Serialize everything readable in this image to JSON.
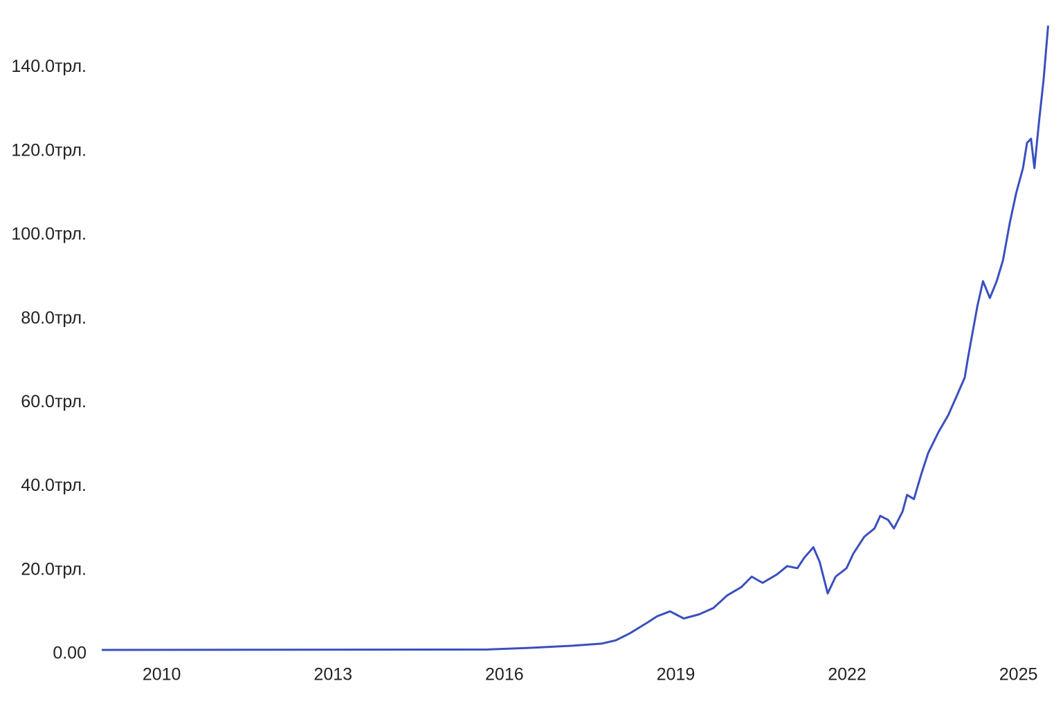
{
  "chart_data": {
    "type": "line",
    "x": [
      2008.95,
      2015.7,
      2016.45,
      2017.2,
      2017.7,
      2017.95,
      2018.2,
      2018.5,
      2018.67,
      2018.9,
      2019.0,
      2019.14,
      2019.41,
      2019.66,
      2019.9,
      2020.15,
      2020.33,
      2020.52,
      2020.77,
      2020.95,
      2021.13,
      2021.25,
      2021.41,
      2021.52,
      2021.66,
      2021.8,
      2021.99,
      2022.11,
      2022.3,
      2022.48,
      2022.58,
      2022.72,
      2022.82,
      2022.97,
      2023.05,
      2023.17,
      2023.3,
      2023.42,
      2023.6,
      2023.77,
      2023.9,
      2024.06,
      2024.12,
      2024.2,
      2024.28,
      2024.38,
      2024.5,
      2024.62,
      2024.73,
      2024.85,
      2024.96,
      2025.08,
      2025.15,
      2025.22,
      2025.28,
      2025.36,
      2025.44,
      2025.52
    ],
    "series": [
      {
        "color": "#3a4fbf",
        "values": [
          0,
          0.1,
          0.5,
          1.0,
          1.5,
          2.3,
          4,
          6.5,
          8,
          9.2,
          8.5,
          7.5,
          8.5,
          10,
          13,
          15,
          17.5,
          16,
          18,
          20,
          19.5,
          22,
          24.5,
          21,
          13.5,
          17.5,
          19.5,
          23,
          27,
          29,
          32,
          31,
          29,
          33,
          37,
          36,
          42,
          47,
          52,
          56,
          60,
          65,
          70,
          76,
          82,
          88,
          84,
          88,
          93,
          102,
          109,
          115,
          121,
          122,
          115,
          126,
          136,
          149
        ]
      }
    ],
    "xlim": [
      2008.95,
      2025.55
    ],
    "xticks": [
      2010,
      2013,
      2016,
      2019,
      2022,
      2025
    ],
    "ylim": [
      0,
      150
    ],
    "yticks": [
      {
        "value": 0,
        "label": "0.00"
      },
      {
        "value": 20,
        "label": "20.0трл."
      },
      {
        "value": 40,
        "label": "40.0трл."
      },
      {
        "value": 60,
        "label": "60.0трл."
      },
      {
        "value": 80,
        "label": "80.0трл."
      },
      {
        "value": 100,
        "label": "100.0трл."
      },
      {
        "value": 120,
        "label": "120.0трл."
      },
      {
        "value": 140,
        "label": "140.0трл."
      }
    ],
    "grid": false
  }
}
